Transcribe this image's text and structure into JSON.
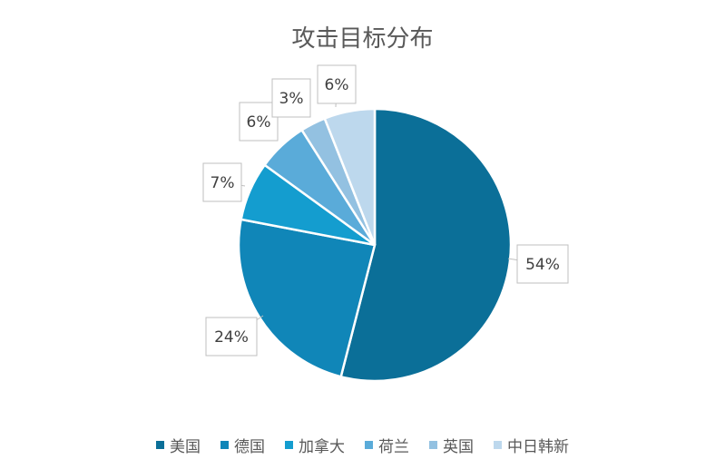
{
  "chart_data": {
    "type": "pie",
    "title": "攻击目标分布",
    "categories": [
      "美国",
      "德国",
      "加拿大",
      "荷兰",
      "英国",
      "中日韩新"
    ],
    "values": [
      54,
      24,
      7,
      6,
      3,
      6
    ],
    "labels": [
      "54%",
      "24%",
      "7%",
      "6%",
      "3%",
      "6%"
    ],
    "colors": [
      "#0b6f98",
      "#1086b8",
      "#149dcf",
      "#5aabd9",
      "#93c1e1",
      "#bdd8ed"
    ],
    "legend": "bottom"
  }
}
